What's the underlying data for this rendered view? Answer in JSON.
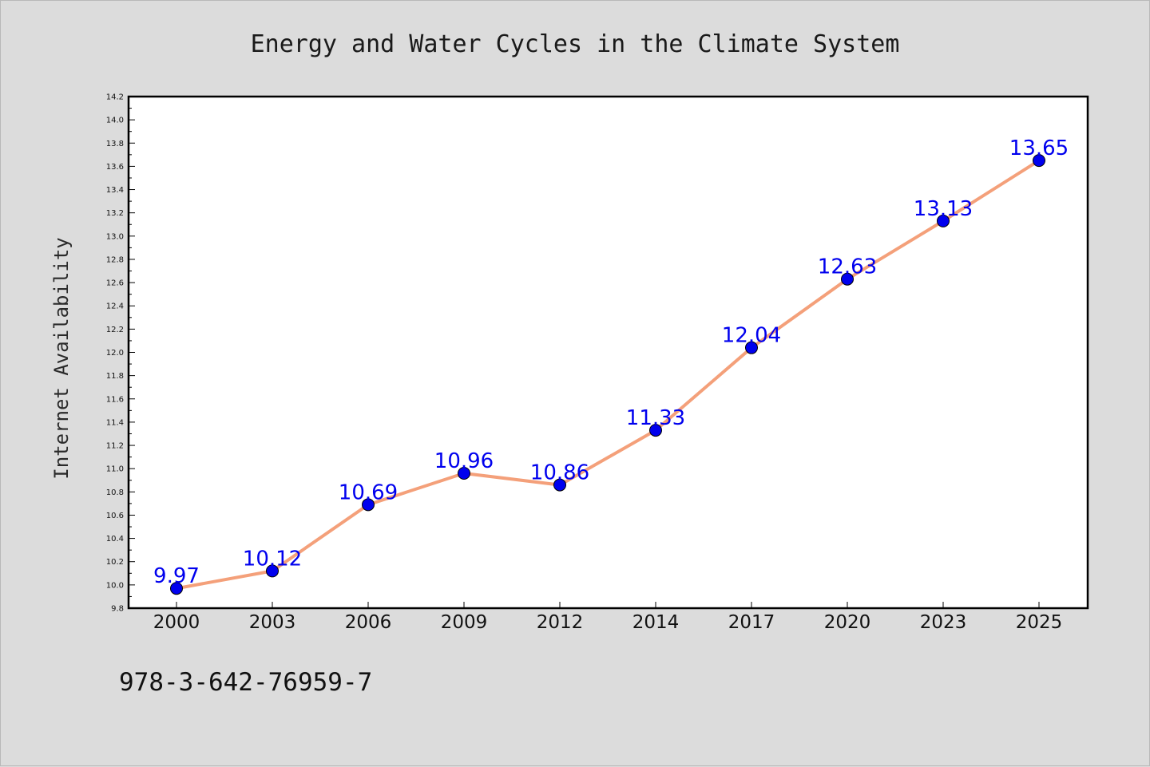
{
  "chart_data": {
    "type": "line",
    "title": "Energy and Water Cycles in the Climate System",
    "xlabel": "",
    "ylabel": "Internet Availability",
    "categories": [
      "2000",
      "2003",
      "2006",
      "2009",
      "2012",
      "2014",
      "2017",
      "2020",
      "2023",
      "2025"
    ],
    "series": [
      {
        "values": [
          9.97,
          10.12,
          10.69,
          10.96,
          10.86,
          11.33,
          12.04,
          12.63,
          13.13,
          13.65
        ],
        "line_color": "#f4a07a",
        "marker_color": "#0000ee",
        "label_color": "#0000ee"
      }
    ],
    "data_labels": [
      "9.97",
      "10.12",
      "10.69",
      "10.96",
      "10.86",
      "11.33",
      "12.04",
      "12.63",
      "13.13",
      "13.65"
    ],
    "ylim": [
      9.8,
      14.2
    ],
    "y_ticks": [
      "9.8",
      "10.0",
      "10.2",
      "10.4",
      "10.6",
      "10.8",
      "11.0",
      "11.2",
      "11.4",
      "11.6",
      "11.8",
      "12.0",
      "12.2",
      "12.4",
      "12.6",
      "12.8",
      "13.0",
      "13.2",
      "13.4",
      "13.6",
      "13.8",
      "14.0",
      "14.2"
    ],
    "grid": false,
    "legend": "none"
  },
  "footer": {
    "isbn": "978-3-642-76959-7"
  },
  "colors": {
    "background": "#dcdcdc",
    "plot_background": "#ffffff",
    "axis": "#000000"
  }
}
